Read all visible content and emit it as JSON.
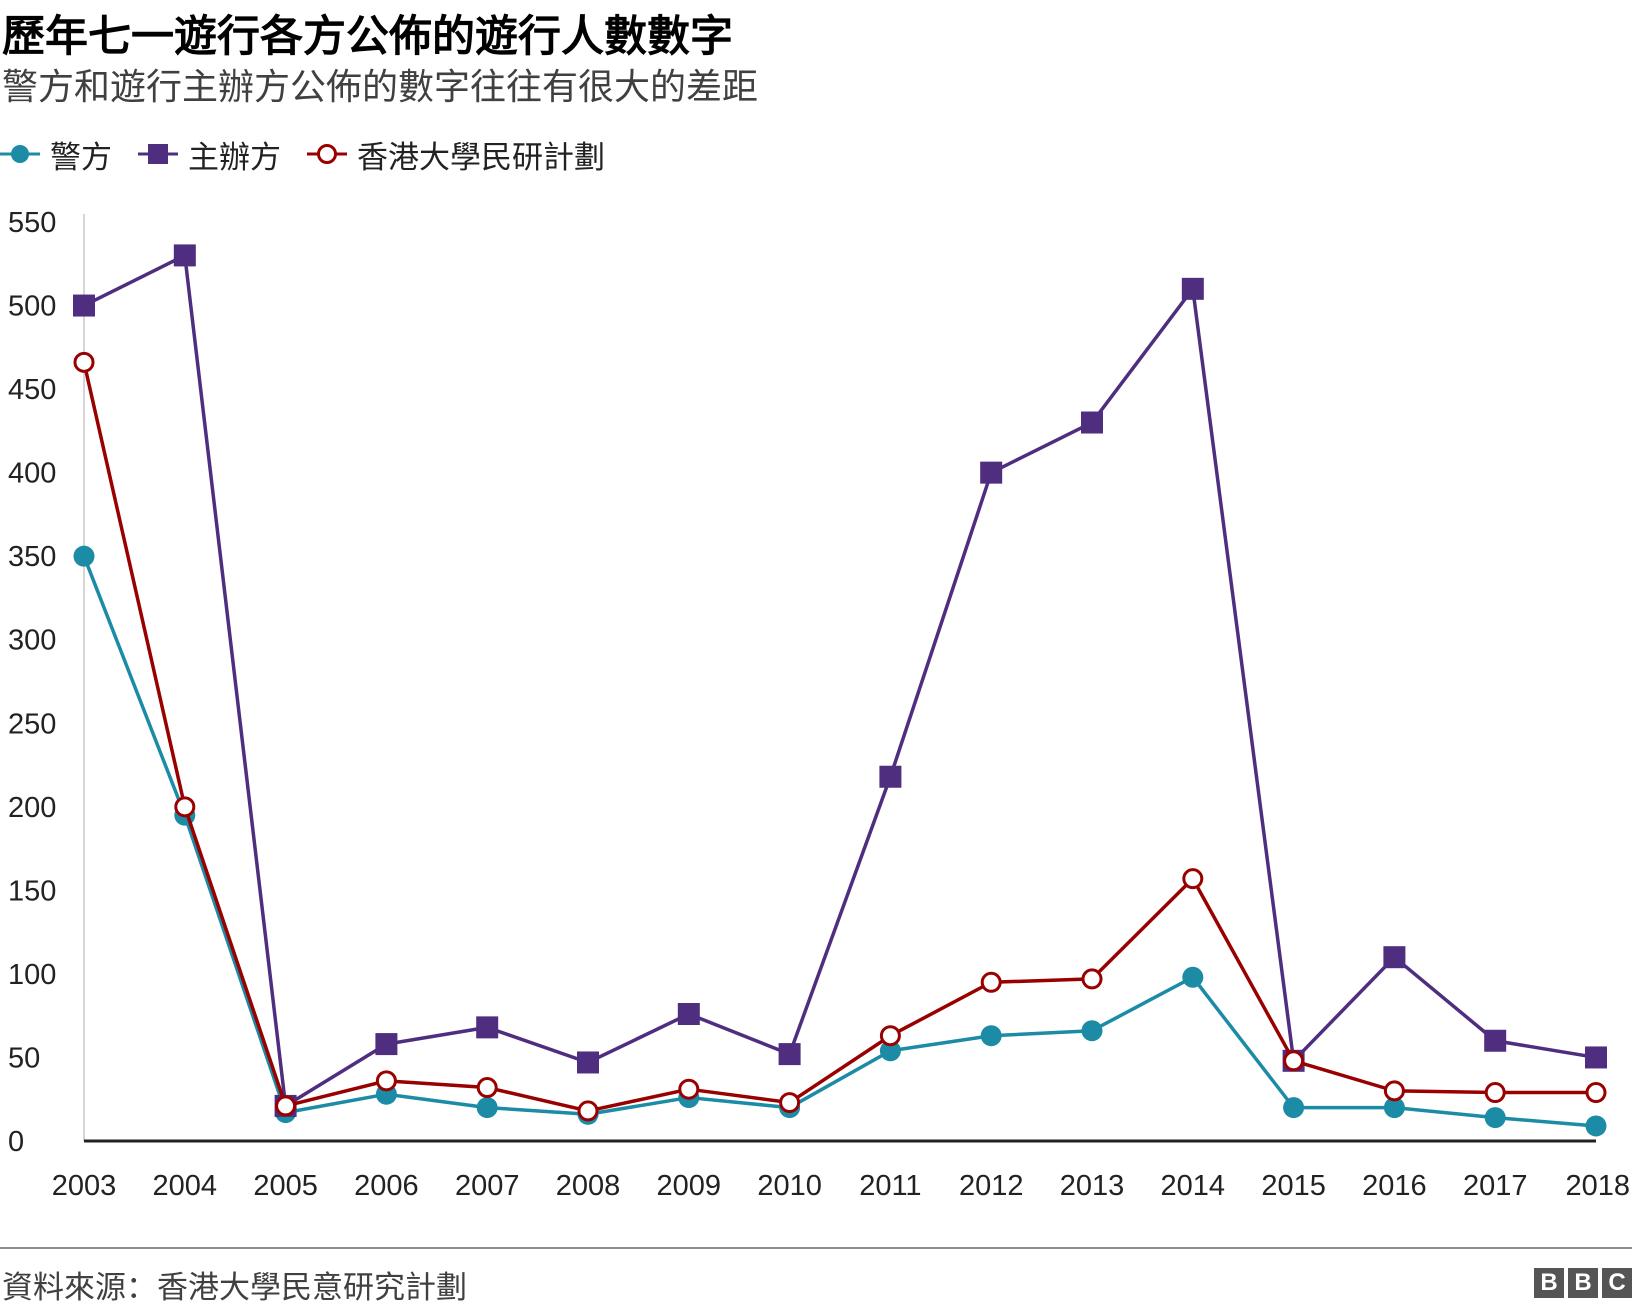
{
  "title": "歷年七一遊行各方公佈的遊行人數數字",
  "subtitle": "警方和遊行主辦方公佈的數字往往有很大的差距",
  "source": "資料來源：香港大學民意研究計劃",
  "logo": [
    "B",
    "B",
    "C"
  ],
  "colors": {
    "police": "#1b8ba6",
    "organizer": "#4f2d7f",
    "hku": "#990000"
  },
  "chart_data": {
    "type": "line",
    "title": "歷年七一遊行各方公佈的遊行人數數字",
    "subtitle": "警方和遊行主辦方公佈的數字往往有很大的差距",
    "xlabel": "",
    "ylabel": "",
    "ylim": [
      0,
      550
    ],
    "yticks": [
      0,
      50,
      100,
      150,
      200,
      250,
      300,
      350,
      400,
      450,
      500,
      550
    ],
    "grid": false,
    "legend_position": "top-left",
    "categories": [
      "2003",
      "2004",
      "2005",
      "2006",
      "2007",
      "2008",
      "2009",
      "2010",
      "2011",
      "2012",
      "2013",
      "2014",
      "2015",
      "2016",
      "2017",
      "2018"
    ],
    "series": [
      {
        "name": "警方",
        "marker": "circle-filled",
        "color": "#1b8ba6",
        "values": [
          350,
          195,
          17,
          28,
          20,
          16,
          26,
          20,
          54,
          63,
          66,
          98,
          20,
          20,
          14,
          9
        ]
      },
      {
        "name": "主辦方",
        "marker": "square",
        "color": "#4f2d7f",
        "values": [
          500,
          530,
          21,
          58,
          68,
          47,
          76,
          52,
          218,
          400,
          430,
          510,
          48,
          110,
          60,
          50
        ]
      },
      {
        "name": "香港大學民研計劃",
        "marker": "circle-open",
        "color": "#990000",
        "values": [
          466,
          200,
          21,
          36,
          32,
          18,
          31,
          23,
          63,
          95,
          97,
          157,
          48,
          30,
          29,
          29
        ]
      }
    ]
  }
}
